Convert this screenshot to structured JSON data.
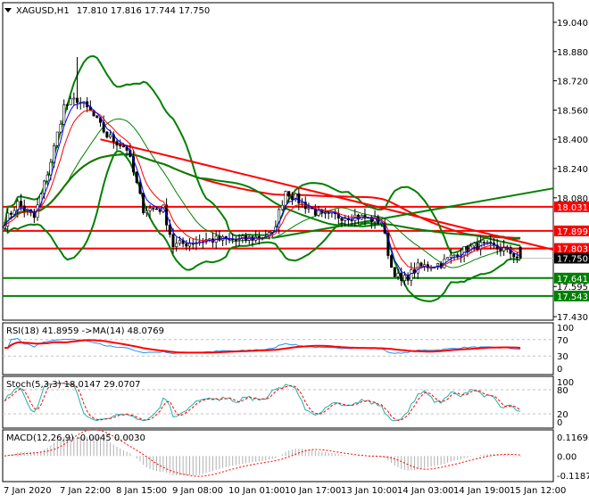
{
  "chart_data": {
    "type": "candlestick",
    "symbol": "XAGUSD,H1",
    "ohlc_label": "17.810 17.816 17.744 17.750",
    "last": {
      "open": 17.81,
      "high": 17.816,
      "low": 17.744,
      "close": 17.75
    },
    "price_ticks": [
      "19.040",
      "18.880",
      "18.720",
      "18.560",
      "18.400",
      "18.240",
      "18.080",
      "17.595",
      "17.430"
    ],
    "ylim": [
      17.43,
      19.14
    ],
    "time_ticks": [
      "7 Jan 2020",
      "7 Jan 22:00",
      "8 Jan 15:00",
      "9 Jan 08:00",
      "10 Jan 01:00",
      "10 Jan 17:00",
      "13 Jan 10:00",
      "14 Jan 03:00",
      "14 Jan 19:00",
      "15 Jan 12:00"
    ],
    "start_time": "7 Jan 05:00",
    "close_path": [
      [
        "7 Jan 05:00",
        17.95
      ],
      [
        "7 Jan 09:00",
        18.05
      ],
      [
        "7 Jan 14:00",
        17.97
      ],
      [
        "7 Jan 19:00",
        18.28
      ],
      [
        "7 Jan 23:00",
        18.58
      ],
      [
        "8 Jan 03:00",
        18.62
      ],
      [
        "8 Jan 07:00",
        18.55
      ],
      [
        "8 Jan 12:00",
        18.42
      ],
      [
        "8 Jan 18:00",
        18.35
      ],
      [
        "8 Jan 23:00",
        18.02
      ],
      [
        "9 Jan 05:00",
        18.02
      ],
      [
        "9 Jan 08:00",
        17.82
      ],
      [
        "9 Jan 18:00",
        17.85
      ],
      [
        "10 Jan 05:00",
        17.85
      ],
      [
        "10 Jan 14:00",
        17.88
      ],
      [
        "10 Jan 18:00",
        18.12
      ],
      [
        "10 Jan 23:00",
        18.05
      ],
      [
        "13 Jan 05:00",
        17.98
      ],
      [
        "13 Jan 15:00",
        17.98
      ],
      [
        "13 Jan 23:00",
        17.95
      ],
      [
        "14 Jan 02:00",
        17.7
      ],
      [
        "14 Jan 05:00",
        17.62
      ],
      [
        "14 Jan 10:00",
        17.7
      ],
      [
        "14 Jan 17:00",
        17.72
      ],
      [
        "14 Jan 22:00",
        17.78
      ],
      [
        "15 Jan 04:00",
        17.82
      ],
      [
        "15 Jan 12:00",
        17.8
      ],
      [
        "15 Jan 17:00",
        17.75
      ]
    ],
    "levels": [
      {
        "price": "18.031",
        "color": "#ff0000"
      },
      {
        "price": "17.899",
        "color": "#ff0000"
      },
      {
        "price": "17.803",
        "color": "#ff0000"
      },
      {
        "price": "17.641",
        "color": "#008000"
      },
      {
        "price": "17.543",
        "color": "#008000"
      }
    ],
    "current_price": {
      "price": "17.750",
      "color": "#000000"
    },
    "trendlines": [
      {
        "from": [
          "8 Jan 10:00",
          18.4
        ],
        "to": [
          "15 Jan 17:00",
          17.84
        ],
        "color": "#ff0000"
      },
      {
        "from": [
          "10 Jan 14:00",
          17.86
        ],
        "to": [
          "15 Jan 17:00",
          18.1
        ],
        "color": "#008000"
      }
    ],
    "indicators": {
      "rsi": {
        "label": "RSI(18) 41.8959  ->MA(14) 48.0769",
        "ticks": [
          "100",
          "70",
          "30",
          "0"
        ],
        "levels": [
          70,
          30
        ],
        "line_color": "#1e90ff",
        "ma_color": "#ff0000"
      },
      "stoch": {
        "label": "Stoch(5,3,3) 18.0147 29.0707",
        "ticks": [
          "100",
          "80",
          "20",
          "0"
        ],
        "levels": [
          80,
          20
        ],
        "k_color": "#20b2aa",
        "d_color": "#ff0000"
      },
      "macd": {
        "label": "MACD(12,26,9) -0.0045 0.0030",
        "ticks": [
          "0.1169",
          "0.00",
          "-0.1187"
        ],
        "ylim": [
          -0.1187,
          0.1169
        ],
        "hist_color": "#b0b0b0",
        "signal_color": "#ff0000"
      }
    }
  }
}
